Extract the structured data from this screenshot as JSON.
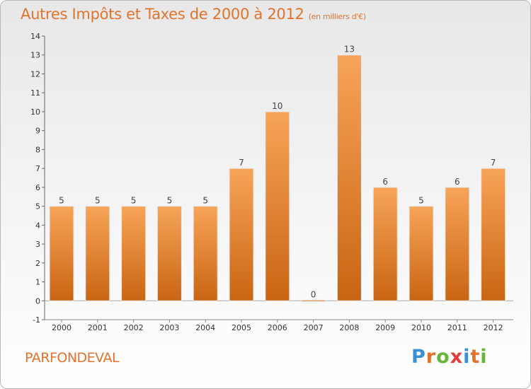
{
  "header": {
    "title": "Autres Impôts et Taxes de 2000 à 2012",
    "subtitle": "(en milliers d'€)"
  },
  "footer": {
    "town": "PARFONDEVAL",
    "brand_letters": [
      "P",
      "r",
      "o",
      "x",
      "i",
      "t",
      "i"
    ],
    "brand_colors": [
      "#3b8fd6",
      "#e2732c",
      "#6cb33e",
      "#e23b3b",
      "#3b8fd6",
      "#e2732c",
      "#6cb33e"
    ]
  },
  "colors": {
    "bar_top": "#f7a459",
    "bar_bottom": "#c96512",
    "title": "#e2732c"
  },
  "chart_data": {
    "type": "bar",
    "categories": [
      "2000",
      "2001",
      "2002",
      "2003",
      "2004",
      "2005",
      "2006",
      "2007",
      "2008",
      "2009",
      "2010",
      "2011",
      "2012"
    ],
    "values": [
      5,
      5,
      5,
      5,
      5,
      7,
      10,
      0,
      13,
      6,
      5,
      6,
      7
    ],
    "data_labels": [
      "5",
      "5",
      "5",
      "5",
      "5",
      "7",
      "10",
      "0",
      "13",
      "6",
      "5",
      "6",
      "7"
    ],
    "yticks": [
      "-1",
      "0",
      "1",
      "2",
      "3",
      "4",
      "5",
      "6",
      "7",
      "8",
      "9",
      "10",
      "11",
      "12",
      "13",
      "14"
    ],
    "ylim": [
      -1,
      14
    ],
    "grid": false,
    "legend": "none"
  }
}
